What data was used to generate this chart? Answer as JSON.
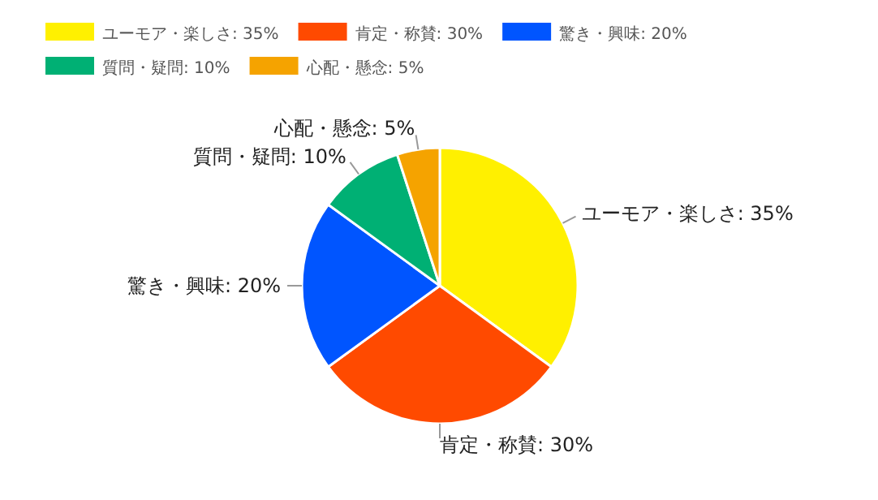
{
  "chart_data": {
    "type": "pie",
    "categories": [
      "ユーモア・楽しさ",
      "肯定・称賛",
      "驚き・興味",
      "質問・疑問",
      "心配・懸念"
    ],
    "values": [
      35,
      30,
      20,
      10,
      5
    ],
    "value_labels": [
      ": 35%",
      ": 30%",
      ": 20%",
      ": 10%",
      ": 5%"
    ],
    "colors": [
      "#fff000",
      "#ff4a00",
      "#0055ff",
      "#00b074",
      "#f5a300"
    ],
    "legend": "top"
  }
}
